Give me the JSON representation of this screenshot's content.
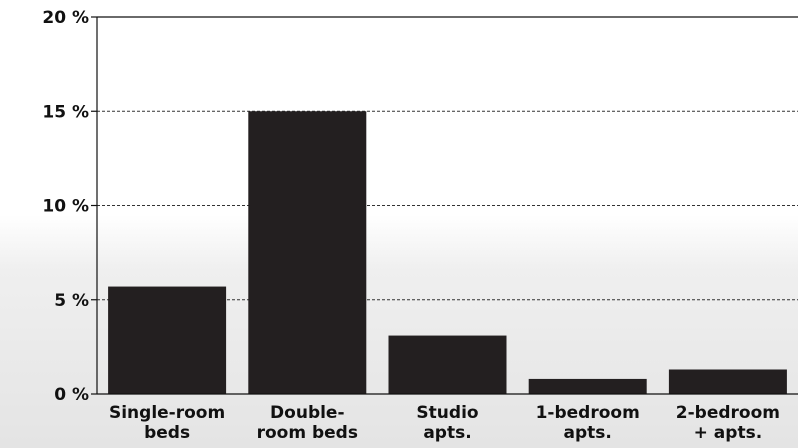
{
  "chart_data": {
    "type": "bar",
    "categories": [
      [
        "Single-room",
        "beds"
      ],
      [
        "Double-",
        "room beds"
      ],
      [
        "Studio",
        "apts."
      ],
      [
        "1-bedroom",
        "apts."
      ],
      [
        "2-bedroom",
        "+ apts."
      ]
    ],
    "values": [
      5.7,
      15.0,
      3.1,
      0.8,
      1.3
    ],
    "yticks": [
      {
        "value": 0,
        "label": "0 %"
      },
      {
        "value": 5,
        "label": "5 %"
      },
      {
        "value": 10,
        "label": "10 %"
      },
      {
        "value": 15,
        "label": "15 %"
      },
      {
        "value": 20,
        "label": "20 %"
      }
    ],
    "ylim": [
      0,
      20
    ],
    "title": "",
    "xlabel": "",
    "ylabel": "",
    "grid": "dashed horizontal",
    "legend": "none",
    "bar_color": "#231f20",
    "grid_color": "#333333"
  }
}
